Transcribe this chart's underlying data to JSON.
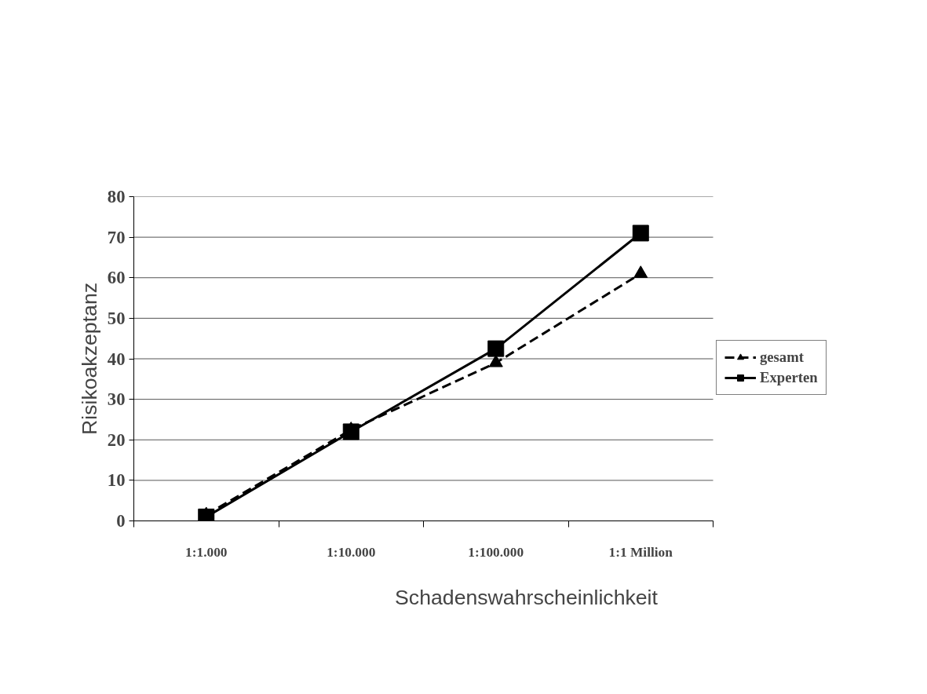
{
  "chart_data": {
    "type": "line",
    "xlabel": "Schadenswahrscheinlichkeit",
    "ylabel": "Risikoakzeptanz",
    "categories": [
      "1:1.000",
      "1:10.000",
      "1:100.000",
      "1:1 Million"
    ],
    "ylim": [
      0,
      80
    ],
    "yticks": [
      0,
      10,
      20,
      30,
      40,
      50,
      60,
      70,
      80
    ],
    "grid": "y",
    "legend": "right",
    "series": [
      {
        "name": "gesamt",
        "color": "#000000",
        "values": [
          1.5,
          22.5,
          39,
          61
        ],
        "marker": "triangle",
        "line_style": "dashed"
      },
      {
        "name": "Experten",
        "color": "#000000",
        "values": [
          1,
          22,
          42.5,
          71
        ],
        "marker": "square",
        "line_style": "solid"
      }
    ]
  }
}
